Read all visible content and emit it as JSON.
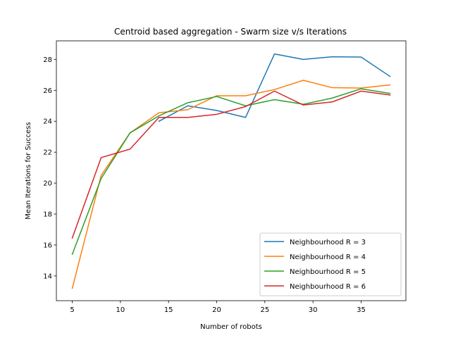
{
  "chart_data": {
    "type": "line",
    "title": "Centroid based aggregation - Swarm size v/s Iterations",
    "xlabel": "Number of robots",
    "ylabel": "Mean Iterations for Success",
    "xlim": [
      3.35,
      39.65
    ],
    "ylim": [
      12.4,
      29.2
    ],
    "xticks": [
      5,
      10,
      15,
      20,
      25,
      30,
      35
    ],
    "yticks": [
      14,
      16,
      18,
      20,
      22,
      24,
      26,
      28
    ],
    "grid": false,
    "legend_position": "lower right",
    "series": [
      {
        "name": "Neighbourhood R = 3",
        "color": "#1f77b4",
        "x": [
          14,
          17,
          20,
          23,
          26,
          29,
          32,
          35,
          38
        ],
        "y": [
          24.0,
          25.0,
          24.7,
          24.25,
          28.35,
          28.0,
          28.17,
          28.15,
          26.9
        ]
      },
      {
        "name": "Neighbourhood R = 4",
        "color": "#ff7f0e",
        "x": [
          5,
          8,
          11,
          14,
          17,
          20,
          23,
          26,
          29,
          32,
          35,
          38
        ],
        "y": [
          13.2,
          20.5,
          23.25,
          24.55,
          24.75,
          25.65,
          25.65,
          26.05,
          26.65,
          26.17,
          26.15,
          26.35
        ]
      },
      {
        "name": "Neighbourhood R = 5",
        "color": "#2ca02c",
        "x": [
          5,
          8,
          11,
          14,
          17,
          20,
          23,
          26,
          29,
          32,
          35,
          38
        ],
        "y": [
          15.4,
          20.3,
          23.25,
          24.35,
          25.2,
          25.6,
          25.0,
          25.4,
          25.1,
          25.5,
          26.1,
          25.8
        ]
      },
      {
        "name": "Neighbourhood R = 6",
        "color": "#d62728",
        "x": [
          5,
          8,
          11,
          14,
          17,
          20,
          23,
          26,
          29,
          32,
          35,
          38
        ],
        "y": [
          16.45,
          21.65,
          22.2,
          24.25,
          24.25,
          24.45,
          24.95,
          25.95,
          25.05,
          25.25,
          25.95,
          25.7
        ]
      }
    ]
  }
}
